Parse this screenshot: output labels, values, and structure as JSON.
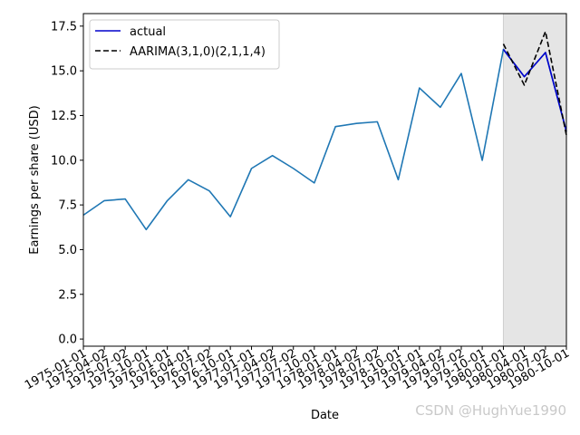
{
  "chart_data": {
    "type": "line",
    "xlabel": "Date",
    "ylabel": "Earnings per share (USD)",
    "ylim": [
      -0.4,
      18.2
    ],
    "yticks": [
      0.0,
      2.5,
      5.0,
      7.5,
      10.0,
      12.5,
      15.0,
      17.5
    ],
    "ytick_labels": [
      "0.0",
      "2.5",
      "5.0",
      "7.5",
      "10.0",
      "12.5",
      "15.0",
      "17.5"
    ],
    "x": [
      "1975-01-01",
      "1975-04-02",
      "1975-07-02",
      "1975-10-01",
      "1976-01-01",
      "1976-04-01",
      "1976-07-02",
      "1976-10-01",
      "1977-01-01",
      "1977-04-02",
      "1977-07-02",
      "1977-10-01",
      "1978-01-01",
      "1978-04-02",
      "1978-07-02",
      "1978-10-01",
      "1979-01-01",
      "1979-04-02",
      "1979-07-02",
      "1979-10-01",
      "1980-01-01",
      "1980-04-01",
      "1980-07-02",
      "1980-10-01"
    ],
    "shaded_region": {
      "from": "1980-01-01",
      "to": "1980-10-01",
      "color": "#e5e5e5"
    },
    "legend_position": "top-left",
    "series": [
      {
        "name": "",
        "color": "#1f77b4",
        "style": "solid",
        "in_legend": false,
        "x": [
          "1975-01-01",
          "1975-04-02",
          "1975-07-02",
          "1975-10-01",
          "1976-01-01",
          "1976-04-01",
          "1976-07-02",
          "1976-10-01",
          "1977-01-01",
          "1977-04-02",
          "1977-07-02",
          "1977-10-01",
          "1978-01-01",
          "1978-04-02",
          "1978-07-02",
          "1978-10-01",
          "1979-01-01",
          "1979-04-02",
          "1979-07-02",
          "1979-10-01",
          "1980-01-01",
          "1980-04-01",
          "1980-07-02",
          "1980-10-01"
        ],
        "values": [
          6.93,
          7.74,
          7.83,
          6.12,
          7.74,
          8.91,
          8.28,
          6.84,
          9.54,
          10.26,
          9.54,
          8.73,
          11.88,
          12.06,
          12.15,
          8.91,
          14.04,
          12.96,
          14.85,
          9.99,
          16.2,
          14.67,
          16.02,
          11.61
        ]
      },
      {
        "name": "actual",
        "color": "#0000cc",
        "style": "solid",
        "in_legend": true,
        "x": [
          "1980-01-01",
          "1980-04-01",
          "1980-07-02",
          "1980-10-01"
        ],
        "values": [
          16.2,
          14.67,
          16.02,
          11.61
        ]
      },
      {
        "name": "AARIMA(3,1,0)(2,1,1,4)",
        "color": "#000000",
        "style": "dashed",
        "in_legend": true,
        "x": [
          "1980-01-01",
          "1980-04-01",
          "1980-07-02",
          "1980-10-01"
        ],
        "values": [
          16.5,
          14.2,
          17.2,
          11.4
        ]
      }
    ]
  },
  "watermark": "CSDN @HughYue1990"
}
